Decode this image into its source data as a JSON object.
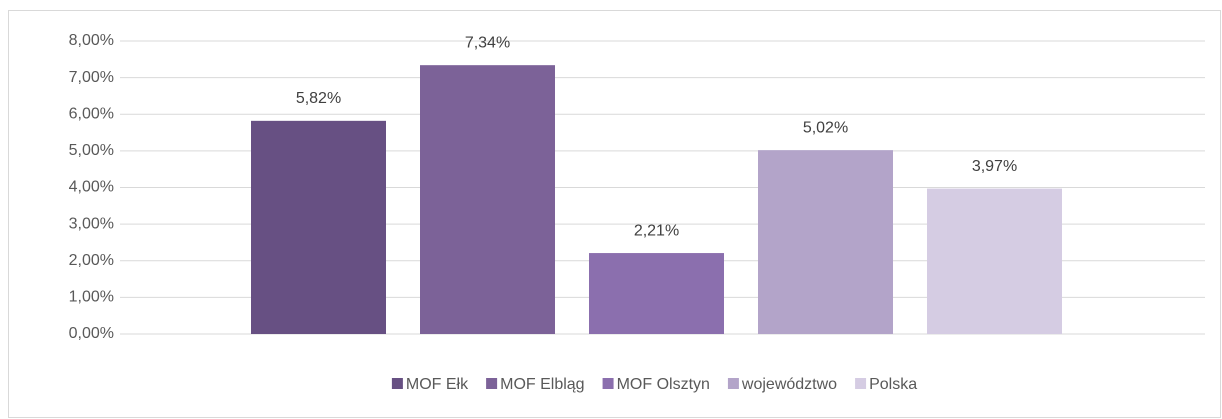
{
  "chart_data": {
    "type": "bar",
    "categories": [
      null
    ],
    "series": [
      {
        "name": "MOF Ełk",
        "color": "#675083",
        "values": [
          5.82
        ],
        "value_labels": [
          "5,82%"
        ]
      },
      {
        "name": "MOF Elbląg",
        "color": "#7c6298",
        "values": [
          7.34
        ],
        "value_labels": [
          "7,34%"
        ]
      },
      {
        "name": "MOF Olsztyn",
        "color": "#8b6fae",
        "values": [
          2.21
        ],
        "value_labels": [
          "2,21%"
        ]
      },
      {
        "name": "województwo",
        "color": "#b3a4c9",
        "values": [
          5.02
        ],
        "value_labels": [
          "5,02%"
        ]
      },
      {
        "name": "Polska",
        "color": "#d5cce3",
        "values": [
          3.97
        ],
        "value_labels": [
          "3,97%"
        ]
      }
    ],
    "ylim": [
      0,
      8
    ],
    "yticks": [
      {
        "value": 0,
        "label": "0,00%"
      },
      {
        "value": 1,
        "label": "1,00%"
      },
      {
        "value": 2,
        "label": "2,00%"
      },
      {
        "value": 3,
        "label": "3,00%"
      },
      {
        "value": 4,
        "label": "4,00%"
      },
      {
        "value": 5,
        "label": "5,00%"
      },
      {
        "value": 6,
        "label": "6,00%"
      },
      {
        "value": 7,
        "label": "7,00%"
      },
      {
        "value": 8,
        "label": "8,00%"
      }
    ],
    "grid": true,
    "legend": "bottom"
  }
}
